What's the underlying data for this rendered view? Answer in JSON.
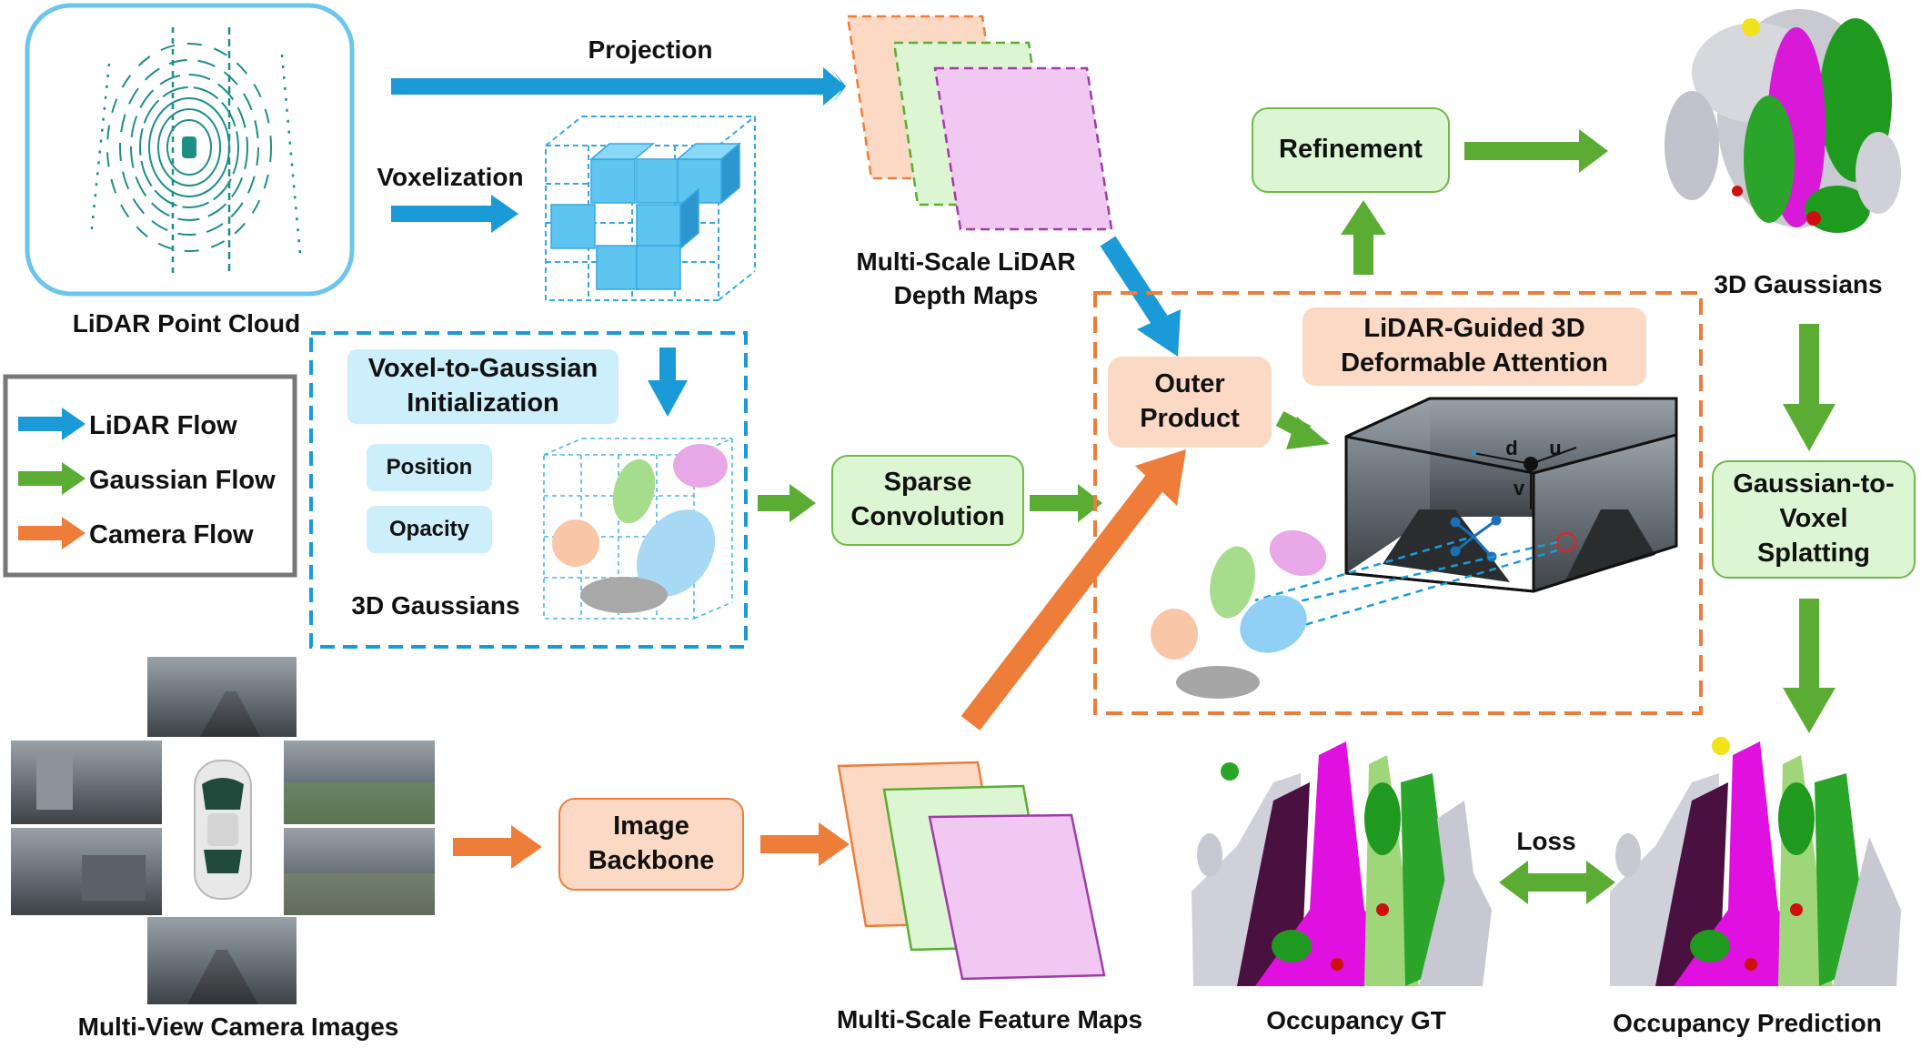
{
  "inputs": {
    "lidar_point_cloud": "LiDAR Point Cloud",
    "multi_view_camera_images": "Multi-View Camera Images"
  },
  "flow_labels": {
    "projection": "Projection",
    "voxelization": "Voxelization",
    "loss": "Loss"
  },
  "depth_maps": {
    "line1": "Multi-Scale LiDAR",
    "line2": "Depth Maps"
  },
  "feature_maps": "Multi-Scale Feature Maps",
  "init_block": {
    "title_line1": "Voxel-to-Gaussian",
    "title_line2": "Initialization",
    "position": "Position",
    "opacity": "Opacity",
    "gaussians": "3D Gaussians"
  },
  "sparse_conv": {
    "line1": "Sparse",
    "line2": "Convolution"
  },
  "image_backbone": {
    "line1": "Image",
    "line2": "Backbone"
  },
  "outer_product": {
    "line1": "Outer",
    "line2": "Product"
  },
  "attention": {
    "title_line1": "LiDAR-Guided 3D",
    "title_line2": "Deformable Attention",
    "axis_d": "d",
    "axis_u": "u",
    "axis_v": "v"
  },
  "refinement": "Refinement",
  "gaussians_out": "3D Gaussians",
  "splatting": {
    "line1": "Gaussian-to-",
    "line2": "Voxel",
    "line3": "Splatting"
  },
  "occupancy_gt": "Occupancy GT",
  "occupancy_pred": "Occupancy Prediction",
  "legend": {
    "lidar": "LiDAR Flow",
    "gaussian": "Gaussian Flow",
    "camera": "Camera Flow"
  },
  "colors": {
    "lidar_flow": "#1a9bd7",
    "gaussian_flow": "#5aad32",
    "camera_flow": "#ee7d3a",
    "dashed_blue": "#1a9bd7",
    "dashed_orange": "#e87e3c",
    "semantic_magenta": "#e010e0",
    "semantic_green": "#1f9a1f",
    "semantic_lightgreen": "#9fd67a",
    "semantic_gray": "#b8b8c8",
    "semantic_darkpurple": "#4a1040"
  }
}
